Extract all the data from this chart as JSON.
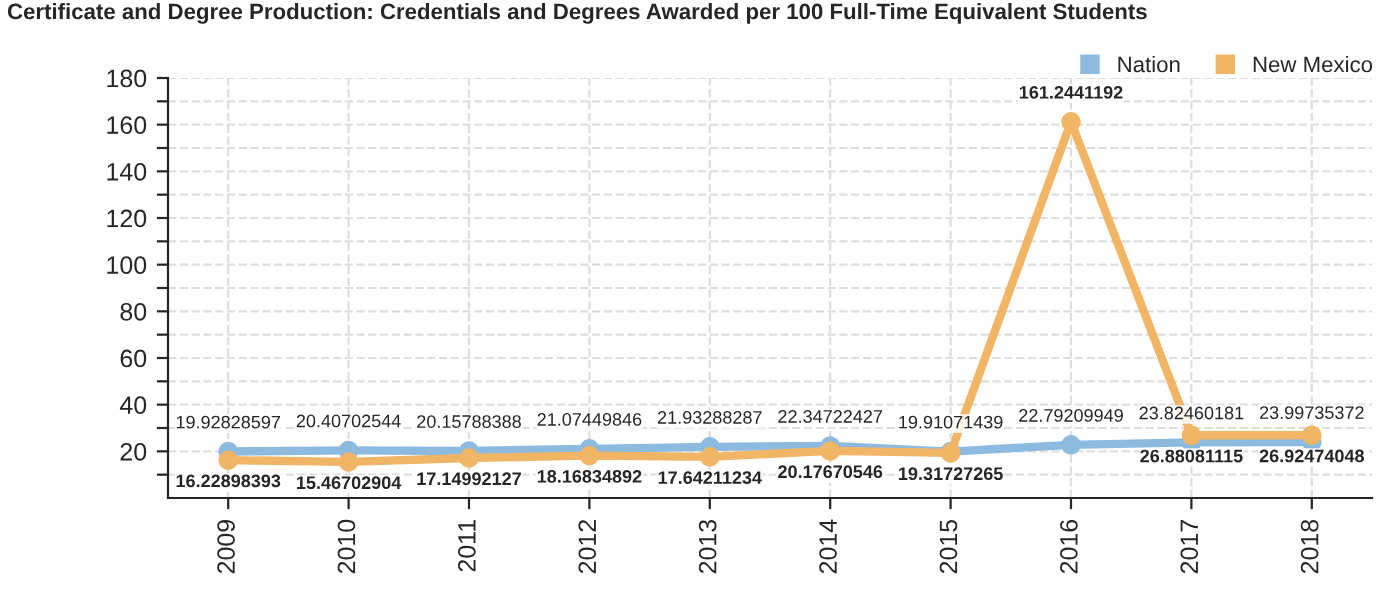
{
  "chart_data": {
    "type": "line",
    "title": "Certificate and Degree Production: Credentials and Degrees Awarded per 100 Full-Time Equivalent Students",
    "categories": [
      "2009",
      "2010",
      "2011",
      "2012",
      "2013",
      "2014",
      "2015",
      "2016",
      "2017",
      "2018"
    ],
    "series": [
      {
        "name": "Nation",
        "color": "#8dbbdf",
        "values": [
          19.92828597,
          20.40702544,
          20.15788388,
          21.07449846,
          21.93288287,
          22.34722427,
          19.91071439,
          22.79209949,
          23.82460181,
          23.99735372
        ]
      },
      {
        "name": "New Mexico",
        "color": "#f0b666",
        "values": [
          16.22898393,
          15.46702904,
          17.14992127,
          18.16834892,
          17.64211234,
          20.17670546,
          19.31727265,
          161.2441192,
          26.88081115,
          26.92474048
        ]
      }
    ],
    "ylim": [
      0,
      180
    ],
    "yticks": [
      {
        "value": 10,
        "label": null
      },
      20,
      {
        "value": 30,
        "label": null
      },
      40,
      {
        "value": 50,
        "label": null
      },
      60,
      {
        "value": 70,
        "label": null
      },
      80,
      {
        "value": 90,
        "label": null
      },
      100,
      {
        "value": 110,
        "label": null
      },
      120,
      {
        "value": 130,
        "label": null
      },
      140,
      {
        "value": 150,
        "label": null
      },
      160,
      {
        "value": 170,
        "label": null
      },
      180
    ],
    "grid": true,
    "legend": "top right",
    "marker": "circle",
    "line_style": "solid",
    "data_labels": true
  }
}
